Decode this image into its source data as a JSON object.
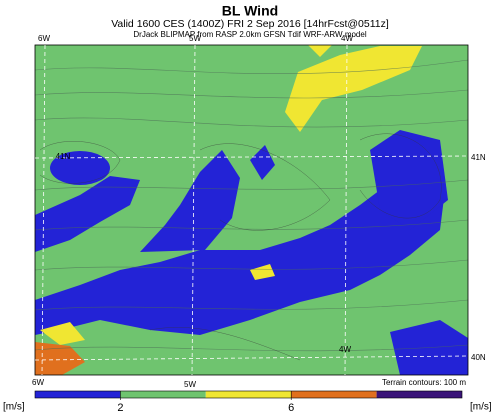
{
  "map": {
    "title": "BL Wind",
    "subtitle": "Valid 1600 CES (1400Z) FRI 2 Sep 2016 [14hrFcst@0511z]",
    "credit": "DrJack BLIPMAP from RASP 2.0km GFSN Tdif WRF-ARW model",
    "top_labels": [
      "6W",
      "5W",
      "4W"
    ],
    "bottom_labels": [
      "6W",
      "5W"
    ],
    "right_labels": [
      "41N",
      "40N"
    ],
    "inner_labels": [
      "41N",
      "4W"
    ],
    "contour_note": "Terrain contours: 100 m",
    "unit_left": "[m/s]",
    "unit_right": "[m/s]",
    "colorbar": {
      "lim": [
        0,
        10
      ],
      "ticks": [
        2,
        6
      ],
      "bands": [
        {
          "from": 0,
          "to": 2,
          "color": "#2323d6"
        },
        {
          "from": 2,
          "to": 4,
          "color": "#6fc46f"
        },
        {
          "from": 4,
          "to": 6,
          "color": "#f0e632"
        },
        {
          "from": 6,
          "to": 8,
          "color": "#e0701e"
        },
        {
          "from": 8,
          "to": 10,
          "color": "#3a1478"
        }
      ]
    }
  }
}
